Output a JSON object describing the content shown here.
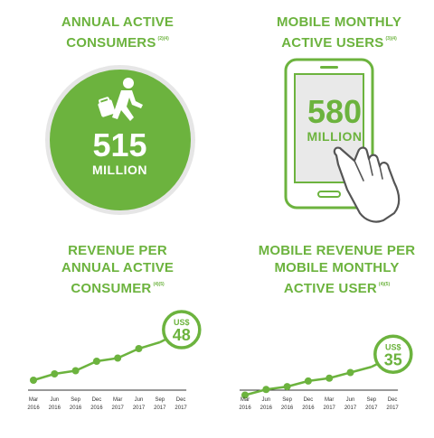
{
  "kpis": {
    "consumers": {
      "heading_lines": [
        "ANNUAL ACTIVE",
        "CONSUMERS"
      ],
      "footnote": "(2)(4)",
      "value": "515",
      "unit": "MILLION"
    },
    "mobile_users": {
      "heading_lines": [
        "MOBILE MONTHLY",
        "ACTIVE USERS"
      ],
      "footnote": "(3)(4)",
      "value": "580",
      "unit": "MILLION"
    }
  },
  "colors": {
    "accent": "#6cb33e",
    "axis": "#333333",
    "phone_screen": "#e9e9e9"
  },
  "icons": [
    "shopper-icon",
    "smartphone-icon",
    "pointing-hand-icon"
  ],
  "chart_data": [
    {
      "type": "line",
      "heading_lines": [
        "REVENUE PER",
        "ANNUAL ACTIVE",
        "CONSUMER"
      ],
      "footnote": "(4)(5)",
      "x_month": [
        "Mar",
        "Jun",
        "Sep",
        "Dec",
        "Mar",
        "Jun",
        "Sep",
        "Dec"
      ],
      "x_year": [
        "2016",
        "2016",
        "2016",
        "2016",
        "2017",
        "2017",
        "2017",
        "2017"
      ],
      "values": [
        34,
        36,
        37,
        40,
        41,
        44,
        46,
        48
      ],
      "badge": {
        "currency": "US$",
        "value": "48"
      },
      "ylim": [
        20,
        60
      ],
      "grid": false
    },
    {
      "type": "line",
      "heading_lines": [
        "MOBILE REVENUE PER",
        "MOBILE MONTHLY",
        "ACTIVE USER"
      ],
      "footnote": "(4)(5)",
      "x_month": [
        "Mar",
        "Jun",
        "Sep",
        "Dec",
        "Mar",
        "Jun",
        "Sep",
        "Dec"
      ],
      "x_year": [
        "2016",
        "2016",
        "2016",
        "2016",
        "2017",
        "2017",
        "2017",
        "2017"
      ],
      "values": [
        22,
        24,
        25,
        27,
        28,
        30,
        32,
        35
      ],
      "badge": {
        "currency": "US$",
        "value": "35"
      },
      "ylim": [
        10,
        50
      ],
      "grid": false
    }
  ]
}
